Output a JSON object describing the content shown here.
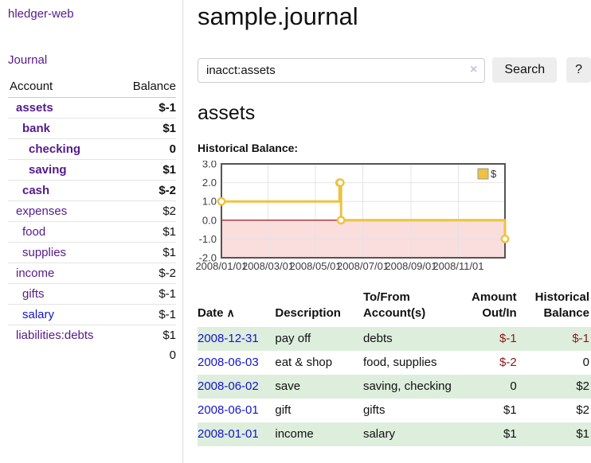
{
  "app": {
    "brand": "hledger-web"
  },
  "colors": {
    "link_purple": "#551a8b",
    "link_blue": "#1414cc",
    "negative_strong": "#8f1616",
    "negative_dim": "#bd7272",
    "row_stripe_green": "#ddeedd",
    "series_gold": "#edc240",
    "zero_line_red": "#8b0000",
    "negative_region_pink": "#fadddd"
  },
  "sidebar": {
    "journal_link": "Journal",
    "accounts_table": {
      "header": {
        "account": "Account",
        "balance": "Balance"
      },
      "rows": [
        {
          "name": "assets",
          "indent": 1,
          "balance": "$-1",
          "bold": true,
          "balance_class": "neg",
          "link_class": ""
        },
        {
          "name": "bank",
          "indent": 2,
          "balance": "$1",
          "bold": true,
          "balance_class": "",
          "link_class": ""
        },
        {
          "name": "checking",
          "indent": 3,
          "balance": "0",
          "bold": true,
          "balance_class": "",
          "link_class": ""
        },
        {
          "name": "saving",
          "indent": 3,
          "balance": "$1",
          "bold": true,
          "balance_class": "",
          "link_class": ""
        },
        {
          "name": "cash",
          "indent": 2,
          "balance": "$-2",
          "bold": true,
          "balance_class": "neg",
          "link_class": ""
        },
        {
          "name": "expenses",
          "indent": 1,
          "balance": "$2",
          "bold": false,
          "balance_class": "",
          "link_class": ""
        },
        {
          "name": "food",
          "indent": 2,
          "balance": "$1",
          "bold": false,
          "balance_class": "",
          "link_class": ""
        },
        {
          "name": "supplies",
          "indent": 2,
          "balance": "$1",
          "bold": false,
          "balance_class": "",
          "link_class": ""
        },
        {
          "name": "income",
          "indent": 1,
          "balance": "$-2",
          "bold": false,
          "balance_class": "negdim",
          "link_class": ""
        },
        {
          "name": "gifts",
          "indent": 2,
          "balance": "$-1",
          "bold": false,
          "balance_class": "negdim",
          "link_class": ""
        },
        {
          "name": "salary",
          "indent": 2,
          "balance": "$-1",
          "bold": false,
          "balance_class": "negdim",
          "link_class": "blue"
        },
        {
          "name": "liabilities:debts",
          "indent": 1,
          "balance": "$1",
          "bold": false,
          "balance_class": "",
          "link_class": ""
        }
      ],
      "total": "0"
    }
  },
  "main": {
    "title": "sample.journal",
    "search": {
      "value": "inacct:assets",
      "clear_icon": "×",
      "button": "Search",
      "help": "?"
    },
    "account_heading": "assets",
    "chart_title": "Historical Balance:"
  },
  "chart_data": {
    "type": "line",
    "step": true,
    "title": "Historical Balance:",
    "x_range": [
      "2008-01-01",
      "2008-12-31"
    ],
    "ylim": [
      -2,
      3
    ],
    "y_ticks": [
      3,
      2,
      1,
      0,
      -1,
      -2
    ],
    "x_ticks": [
      {
        "date": "2008-01-01",
        "label": "2008/01/01"
      },
      {
        "date": "2008-03-01",
        "label": "2008/03/01"
      },
      {
        "date": "2008-05-01",
        "label": "2008/05/01"
      },
      {
        "date": "2008-07-01",
        "label": "2008/07/01"
      },
      {
        "date": "2008-09-01",
        "label": "2008/09/01"
      },
      {
        "date": "2008-11-01",
        "label": "2008/11/01"
      }
    ],
    "series": [
      {
        "name": "$",
        "color": "#edc240",
        "points": [
          {
            "date": "2008-01-01",
            "value": 1
          },
          {
            "date": "2008-06-01",
            "value": 2
          },
          {
            "date": "2008-06-02",
            "value": 2
          },
          {
            "date": "2008-06-03",
            "value": 0
          },
          {
            "date": "2008-12-31",
            "value": -1
          }
        ]
      }
    ],
    "legend": {
      "label": "$",
      "position": "top-right"
    },
    "grid": true,
    "zero_line_color": "#8b0000",
    "negative_region_fill": "#fadddd"
  },
  "register": {
    "headers": [
      "Date",
      "Description",
      "To/From Account(s)",
      "Amount Out/In",
      "Historical Balance"
    ],
    "sort_icon": "∧",
    "rows": [
      {
        "date": "2008-12-31",
        "description": "pay off",
        "accounts": "debts",
        "amount": "$-1",
        "balance": "$-1",
        "amount_class": "neg",
        "balance_class": "neg"
      },
      {
        "date": "2008-06-03",
        "description": "eat & shop",
        "accounts": "food, supplies",
        "amount": "$-2",
        "balance": "0",
        "amount_class": "neg",
        "balance_class": ""
      },
      {
        "date": "2008-06-02",
        "description": "save",
        "accounts": "saving, checking",
        "amount": "0",
        "balance": "$2",
        "amount_class": "",
        "balance_class": ""
      },
      {
        "date": "2008-06-01",
        "description": "gift",
        "accounts": "gifts",
        "amount": "$1",
        "balance": "$2",
        "amount_class": "",
        "balance_class": ""
      },
      {
        "date": "2008-01-01",
        "description": "income",
        "accounts": "salary",
        "amount": "$1",
        "balance": "$1",
        "amount_class": "",
        "balance_class": ""
      }
    ]
  }
}
